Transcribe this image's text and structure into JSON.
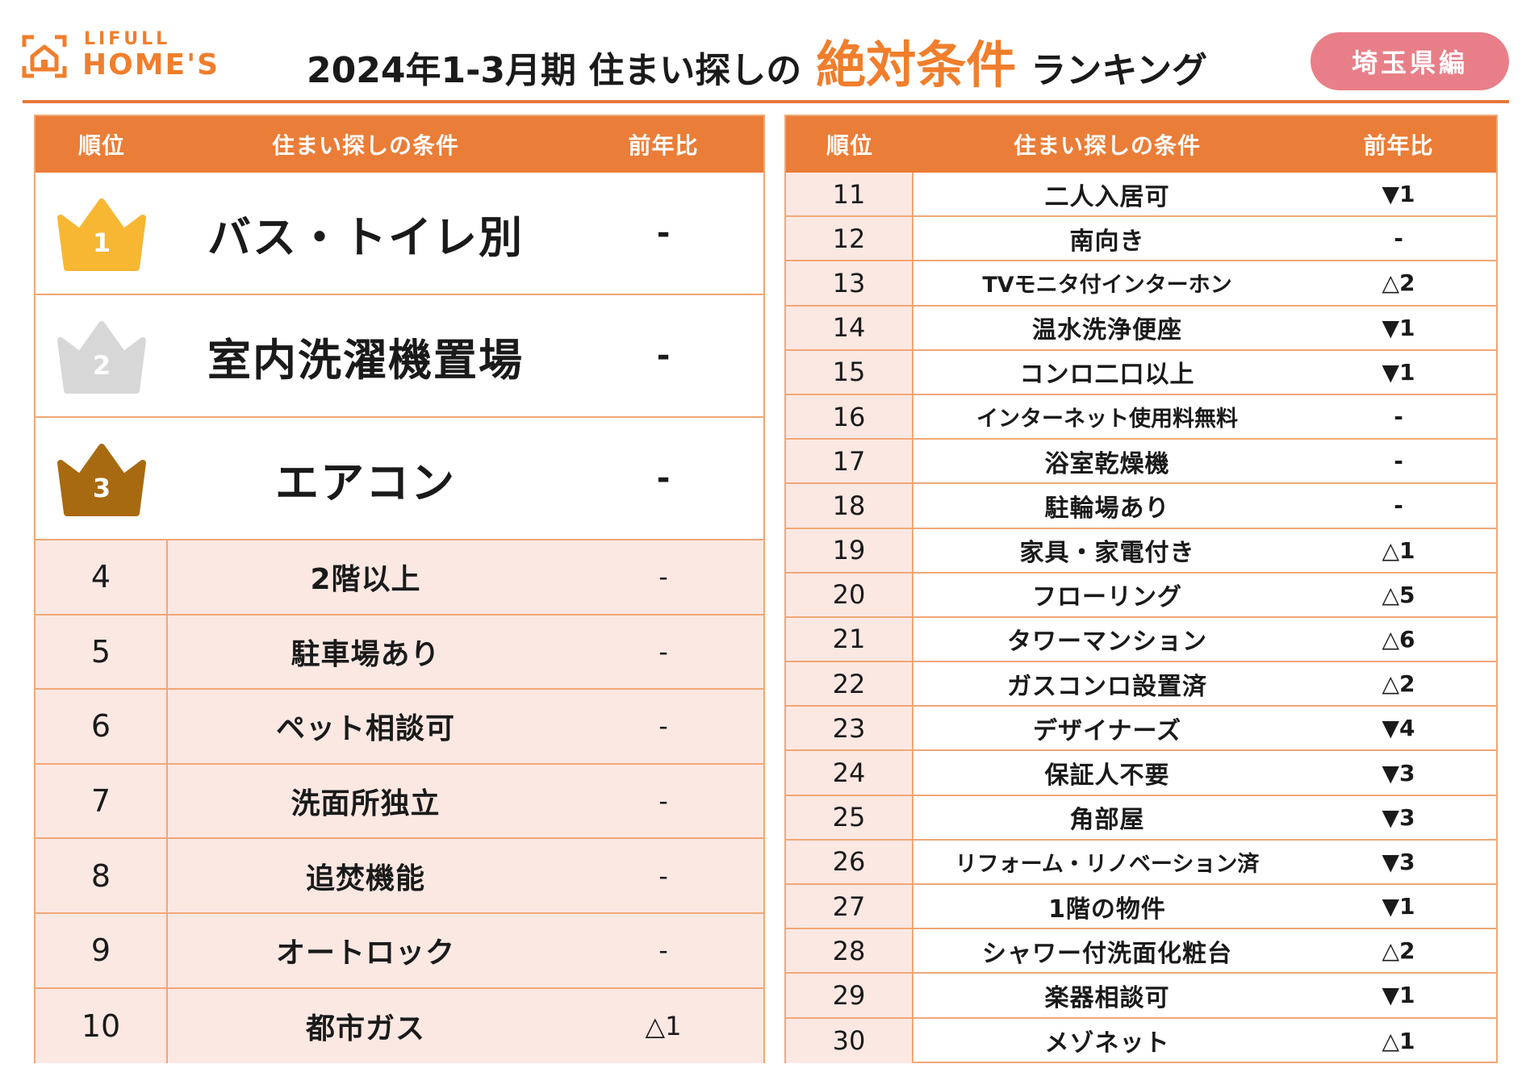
{
  "brand": {
    "line1": "LIFULL",
    "line2": "HOME'S",
    "color": "#f07e2c"
  },
  "title": {
    "prefix": "2024年1-3月期 住まい探しの",
    "emphasis": "絶対条件",
    "suffix": "ランキング"
  },
  "region_badge": "埼玉県編",
  "left_table": {
    "headers": [
      "順位",
      "住まい探しの条件",
      "前年比"
    ],
    "top3": [
      {
        "rank": "1",
        "condition": "バス・トイレ別",
        "change": "-",
        "crown_color": "#f7b733"
      },
      {
        "rank": "2",
        "condition": "室内洗濯機置場",
        "change": "-",
        "crown_color": "#d7d7d7"
      },
      {
        "rank": "3",
        "condition": "エアコン",
        "change": "-",
        "crown_color": "#a86a10"
      }
    ],
    "rows": [
      {
        "rank": "4",
        "condition": "2階以上",
        "change": "-"
      },
      {
        "rank": "5",
        "condition": "駐車場あり",
        "change": "-"
      },
      {
        "rank": "6",
        "condition": "ペット相談可",
        "change": "-"
      },
      {
        "rank": "7",
        "condition": "洗面所独立",
        "change": "-"
      },
      {
        "rank": "8",
        "condition": "追焚機能",
        "change": "-"
      },
      {
        "rank": "9",
        "condition": "オートロック",
        "change": "-"
      },
      {
        "rank": "10",
        "condition": "都市ガス",
        "change": "△1"
      }
    ]
  },
  "right_table": {
    "headers": [
      "順位",
      "住まい探しの条件",
      "前年比"
    ],
    "rows": [
      {
        "rank": "11",
        "condition": "二人入居可",
        "change": "▼1"
      },
      {
        "rank": "12",
        "condition": "南向き",
        "change": "-"
      },
      {
        "rank": "13",
        "condition": "TVモニタ付インターホン",
        "change": "△2"
      },
      {
        "rank": "14",
        "condition": "温水洗浄便座",
        "change": "▼1"
      },
      {
        "rank": "15",
        "condition": "コンロ二口以上",
        "change": "▼1"
      },
      {
        "rank": "16",
        "condition": "インターネット使用料無料",
        "change": "-"
      },
      {
        "rank": "17",
        "condition": "浴室乾燥機",
        "change": "-"
      },
      {
        "rank": "18",
        "condition": "駐輪場あり",
        "change": "-"
      },
      {
        "rank": "19",
        "condition": "家具・家電付き",
        "change": "△1"
      },
      {
        "rank": "20",
        "condition": "フローリング",
        "change": "△5"
      },
      {
        "rank": "21",
        "condition": "タワーマンション",
        "change": "△6"
      },
      {
        "rank": "22",
        "condition": "ガスコンロ設置済",
        "change": "△2"
      },
      {
        "rank": "23",
        "condition": "デザイナーズ",
        "change": "▼4"
      },
      {
        "rank": "24",
        "condition": "保証人不要",
        "change": "▼3"
      },
      {
        "rank": "25",
        "condition": "角部屋",
        "change": "▼3"
      },
      {
        "rank": "26",
        "condition": "リフォーム・リノベーション済",
        "change": "▼3"
      },
      {
        "rank": "27",
        "condition": "1階の物件",
        "change": "▼1"
      },
      {
        "rank": "28",
        "condition": "シャワー付洗面化粧台",
        "change": "△2"
      },
      {
        "rank": "29",
        "condition": "楽器相談可",
        "change": "▼1"
      },
      {
        "rank": "30",
        "condition": "メゾネット",
        "change": "△1"
      }
    ]
  },
  "colors": {
    "accent": "#ea7d37",
    "row_tint": "#fbe8e3",
    "border": "#f0a776",
    "badge": "#e87f88"
  }
}
